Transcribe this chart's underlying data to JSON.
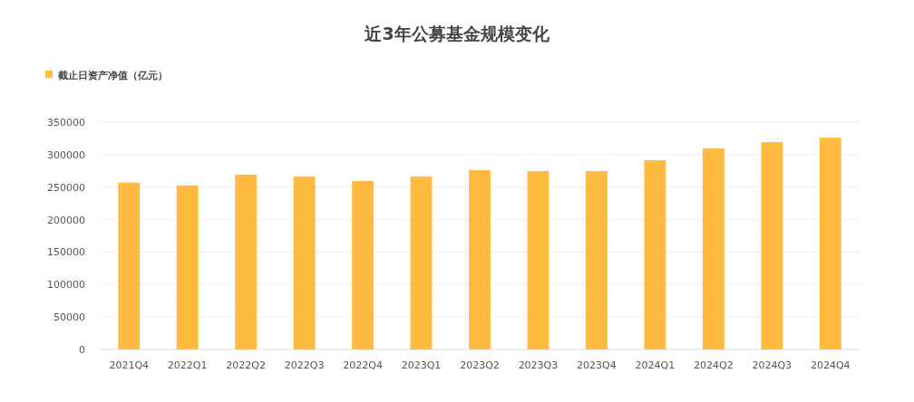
{
  "chart_data": {
    "type": "bar",
    "title": "近3年公募基金规模变化",
    "categories": [
      "2021Q4",
      "2022Q1",
      "2022Q2",
      "2022Q3",
      "2022Q4",
      "2023Q1",
      "2023Q2",
      "2023Q3",
      "2023Q4",
      "2024Q1",
      "2024Q2",
      "2024Q3",
      "2024Q4"
    ],
    "series": [
      {
        "name": "截止日资产净值（亿元）",
        "color": "#ffbb3f",
        "values": [
          257000,
          252600,
          269200,
          266500,
          259500,
          266500,
          276200,
          274800,
          274800,
          291500,
          309500,
          319300,
          326200
        ]
      }
    ],
    "ylim": [
      0,
      350000
    ],
    "yticks": [
      0,
      50000,
      100000,
      150000,
      200000,
      250000,
      300000,
      350000
    ],
    "grid": "y",
    "legend": "top left"
  }
}
